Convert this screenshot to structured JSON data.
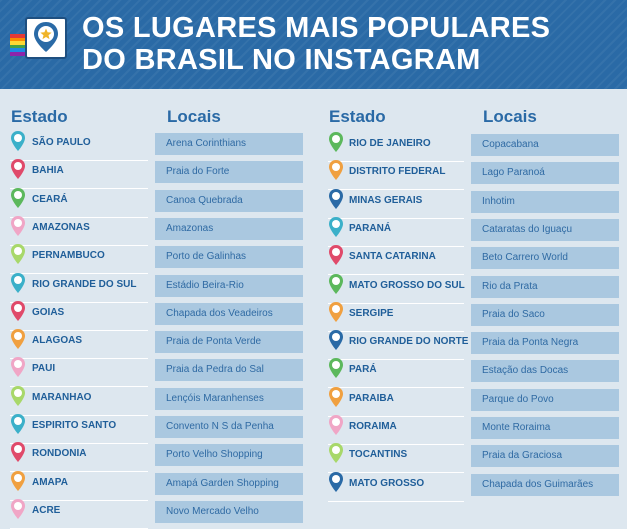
{
  "header": {
    "title_line1": "OS LUGARES MAIS POPULARES",
    "title_line2": "DO BRASIL NO INSTAGRAM"
  },
  "columns": {
    "state_label": "Estado",
    "places_label": "Locais"
  },
  "left_rows": [
    {
      "state": "SÃO PAULO",
      "place": "Arena Corinthians",
      "pin_color": "#3bb0c9"
    },
    {
      "state": "BAHIA",
      "place": "Praia do Forte",
      "pin_color": "#e04a6a"
    },
    {
      "state": "CEARÁ",
      "place": "Canoa Quebrada",
      "pin_color": "#5cb85c"
    },
    {
      "state": "AMAZONAS",
      "place": "Amazonas",
      "pin_color": "#f0a6c6"
    },
    {
      "state": "PERNAMBUCO",
      "place": "Porto de Galinhas",
      "pin_color": "#a8d86a"
    },
    {
      "state": "RIO GRANDE DO SUL",
      "place": "Estádio Beira-Rio",
      "pin_color": "#3bb0c9"
    },
    {
      "state": "GOIAS",
      "place": "Chapada dos Veadeiros",
      "pin_color": "#e04a6a"
    },
    {
      "state": "ALAGOAS",
      "place": "Praia de Ponta Verde",
      "pin_color": "#f0a040"
    },
    {
      "state": "PAUI",
      "place": "Praia da Pedra do Sal",
      "pin_color": "#f0a6c6"
    },
    {
      "state": "MARANHAO",
      "place": "Lençóis Maranhenses",
      "pin_color": "#a8d86a"
    },
    {
      "state": "ESPIRITO SANTO",
      "place": "Convento N S da Penha",
      "pin_color": "#3bb0c9"
    },
    {
      "state": "RONDONIA",
      "place": "Porto Velho Shopping",
      "pin_color": "#e04a6a"
    },
    {
      "state": "AMAPA",
      "place": "Amapá Garden Shopping",
      "pin_color": "#f0a040"
    },
    {
      "state": "ACRE",
      "place": "Novo Mercado Velho",
      "pin_color": "#f0a6c6"
    }
  ],
  "right_rows": [
    {
      "state": "RIO DE JANEIRO",
      "place": "Copacabana",
      "pin_color": "#5cb85c"
    },
    {
      "state": "DISTRITO FEDERAL",
      "place": "Lago Paranoá",
      "pin_color": "#f0a040"
    },
    {
      "state": "MINAS GERAIS",
      "place": "Inhotim",
      "pin_color": "#2a6aa6"
    },
    {
      "state": "PARANÁ",
      "place": "Cataratas do Iguaçu",
      "pin_color": "#3bb0c9"
    },
    {
      "state": "SANTA CATARINA",
      "place": "Beto Carrero World",
      "pin_color": "#e04a6a"
    },
    {
      "state": "MATO GROSSO DO SUL",
      "place": "Rio da Prata",
      "pin_color": "#5cb85c"
    },
    {
      "state": "SERGIPE",
      "place": "Praia do Saco",
      "pin_color": "#f0a040"
    },
    {
      "state": "RIO GRANDE DO NORTE",
      "place": "Praia da Ponta Negra",
      "pin_color": "#2a6aa6"
    },
    {
      "state": "PARÁ",
      "place": "Estação das Docas",
      "pin_color": "#5cb85c"
    },
    {
      "state": "PARAIBA",
      "place": "Parque do Povo",
      "pin_color": "#f0a040"
    },
    {
      "state": "RORAIMA",
      "place": "Monte Roraima",
      "pin_color": "#f0a6c6"
    },
    {
      "state": "TOCANTINS",
      "place": "Praia da Graciosa",
      "pin_color": "#a8d86a"
    },
    {
      "state": "MATO GROSSO",
      "place": "Chapada dos Guimarães",
      "pin_color": "#2a6aa6"
    }
  ],
  "logo": {
    "icon": "map-pin-star-icon",
    "stripe_colors": [
      "#e53935",
      "#fb8c00",
      "#fdd835",
      "#43a047",
      "#1e88e5",
      "#8e24aa"
    ]
  }
}
